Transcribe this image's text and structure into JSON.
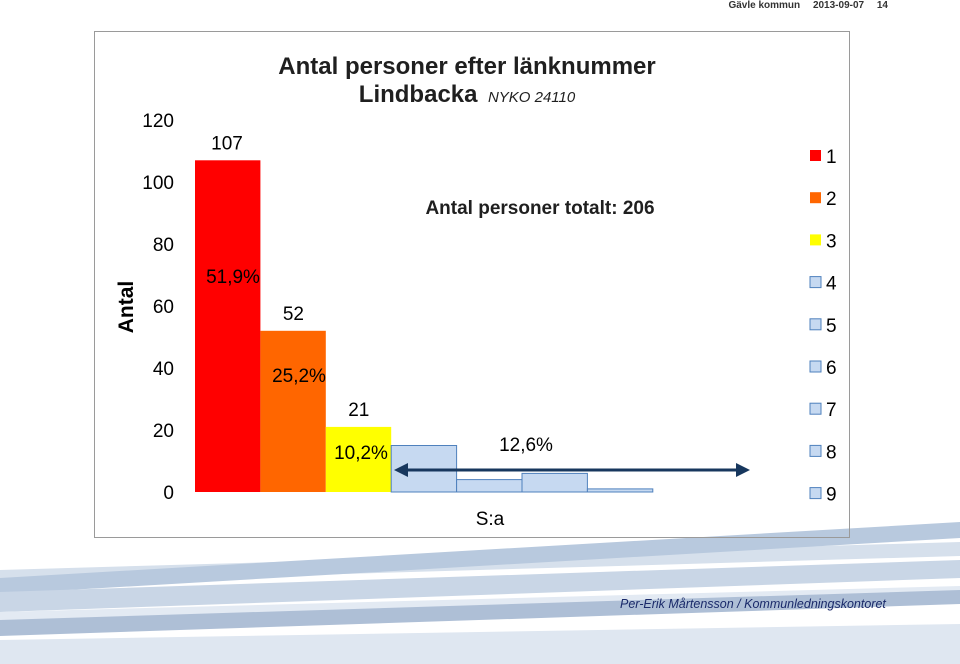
{
  "header": {
    "org": "Gävle kommun",
    "date": "2013-09-07",
    "page": "14"
  },
  "footer": {
    "author": "Per-Erik Mårtensson / Kommunledningskontoret"
  },
  "colors": {
    "red": "#ff0000",
    "orange": "#ff6600",
    "yellow": "#ffff00",
    "light_blue": "#c6d9f1",
    "blue_edge": "#4f81bd",
    "arrow": "#17375e"
  },
  "chart_data": {
    "type": "bar",
    "title": "Antal personer efter länknummer",
    "subtitle": "Lindbacka",
    "subtitle_code": "NYKO 24110",
    "ylabel": "Antal",
    "ylim": [
      0,
      120
    ],
    "yticks": [
      "0",
      "20",
      "40",
      "60",
      "80",
      "100",
      "120"
    ],
    "total_label": "Antal personer totalt: 206",
    "sum_label": "S:a",
    "sum_percent": "12,6%",
    "grid": false,
    "legend_placement": "right",
    "categories": [
      "1",
      "2",
      "3",
      "4",
      "5",
      "6",
      "7",
      "8",
      "9"
    ],
    "values": [
      107,
      52,
      21,
      15,
      4,
      6,
      1,
      0,
      0
    ],
    "value_labels": [
      "107",
      "52",
      "21",
      "",
      "",
      "",
      "",
      "",
      ""
    ],
    "percent_labels": [
      "51,9%",
      "25,2%",
      "10,2%",
      "",
      "",
      "",
      "",
      "",
      ""
    ],
    "bar_colors": [
      "#ff0000",
      "#ff6600",
      "#ffff00",
      "#c6d9f1",
      "#c6d9f1",
      "#c6d9f1",
      "#c6d9f1",
      "#c6d9f1",
      "#c6d9f1"
    ],
    "legend": [
      {
        "label": "1",
        "color": "#ff0000"
      },
      {
        "label": "2",
        "color": "#ff6600"
      },
      {
        "label": "3",
        "color": "#ffff00"
      },
      {
        "label": "4",
        "color": "#c6d9f1"
      },
      {
        "label": "5",
        "color": "#c6d9f1"
      },
      {
        "label": "6",
        "color": "#c6d9f1"
      },
      {
        "label": "7",
        "color": "#c6d9f1"
      },
      {
        "label": "8",
        "color": "#c6d9f1"
      },
      {
        "label": "9",
        "color": "#c6d9f1"
      }
    ]
  }
}
